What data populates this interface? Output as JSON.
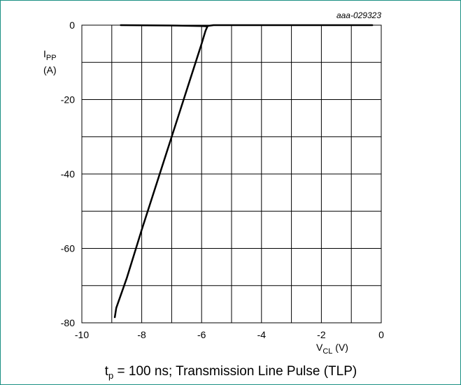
{
  "chart_data": {
    "type": "line",
    "figure_id": "aaa-029323",
    "caption": {
      "t": "t",
      "sub": "p",
      "rest": " = 100 ns; Transmission Line Pulse (TLP)"
    },
    "xlabel": {
      "main": "V",
      "sub": "CL",
      "unit": " (V)"
    },
    "ylabel": {
      "main": "I",
      "sub": "PP",
      "unit": "(A)"
    },
    "xlim": [
      -10,
      0
    ],
    "ylim": [
      -80,
      0
    ],
    "x_major_ticks": [
      -10,
      -8,
      -6,
      -4,
      -2,
      0
    ],
    "x_tick_labels": [
      "-10",
      "-8",
      "-6",
      "-4",
      "-2",
      "0"
    ],
    "y_major_ticks": [
      0,
      -20,
      -40,
      -60,
      -80
    ],
    "y_tick_labels": [
      "0",
      "-20",
      "-40",
      "-60",
      "-80"
    ],
    "grid": true,
    "grid_x_step": 1,
    "grid_y_step": 10,
    "series": [
      {
        "x": [
          -0.3,
          -2.0,
          -4.0,
          -5.6,
          -5.8,
          -5.82,
          -5.87,
          -6.0,
          -7.0,
          -8.0,
          -8.5,
          -8.85,
          -8.9
        ],
        "y": [
          0,
          0,
          0,
          0,
          -0.2,
          -0.6,
          -1.5,
          -5.0,
          -30.0,
          -55.0,
          -68.0,
          -76.0,
          -78.5
        ]
      },
      {
        "x": [
          -8.7,
          -7.0,
          -6.0,
          -5.8
        ],
        "y": [
          0,
          -0.1,
          -0.25,
          -0.3
        ]
      }
    ]
  }
}
